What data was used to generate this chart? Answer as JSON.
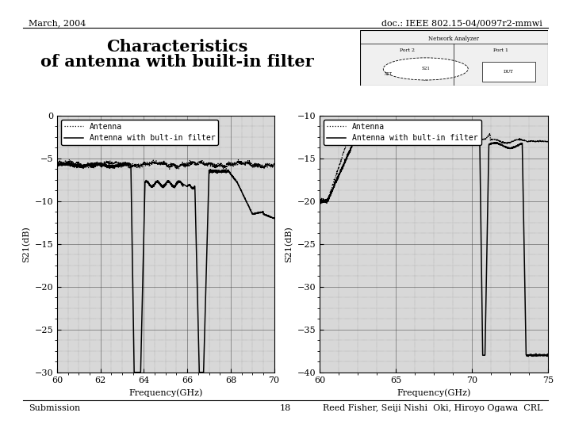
{
  "title_line1": "Characteristics",
  "title_line2": "of antenna with built-in filter",
  "header_left": "March, 2004",
  "header_right": "doc.: IEEE 802.15-04/0097r2-mmwi",
  "footer_left": "Submission",
  "footer_center": "18",
  "footer_right": "Reed Fisher, Seiji Nishi  Oki, Hiroyo Ogawa  CRL",
  "plot1": {
    "xlabel": "Frequency(GHz)",
    "ylabel": "S21(dB)",
    "xlim": [
      60,
      70
    ],
    "ylim": [
      -30,
      0
    ],
    "xticks": [
      60,
      62,
      64,
      66,
      68,
      70
    ],
    "yticks": [
      0,
      -5,
      -10,
      -15,
      -20,
      -25,
      -30
    ]
  },
  "plot2": {
    "xlabel": "Frequency(GHz)",
    "ylabel": "S21(dB)",
    "xlim": [
      60,
      75
    ],
    "ylim": [
      -40,
      -10
    ],
    "xticks": [
      60,
      65,
      70,
      75
    ],
    "yticks": [
      -10,
      -15,
      -20,
      -25,
      -30,
      -35,
      -40
    ]
  },
  "background_color": "#ffffff",
  "plot_bg_color": "#d8d8d8"
}
